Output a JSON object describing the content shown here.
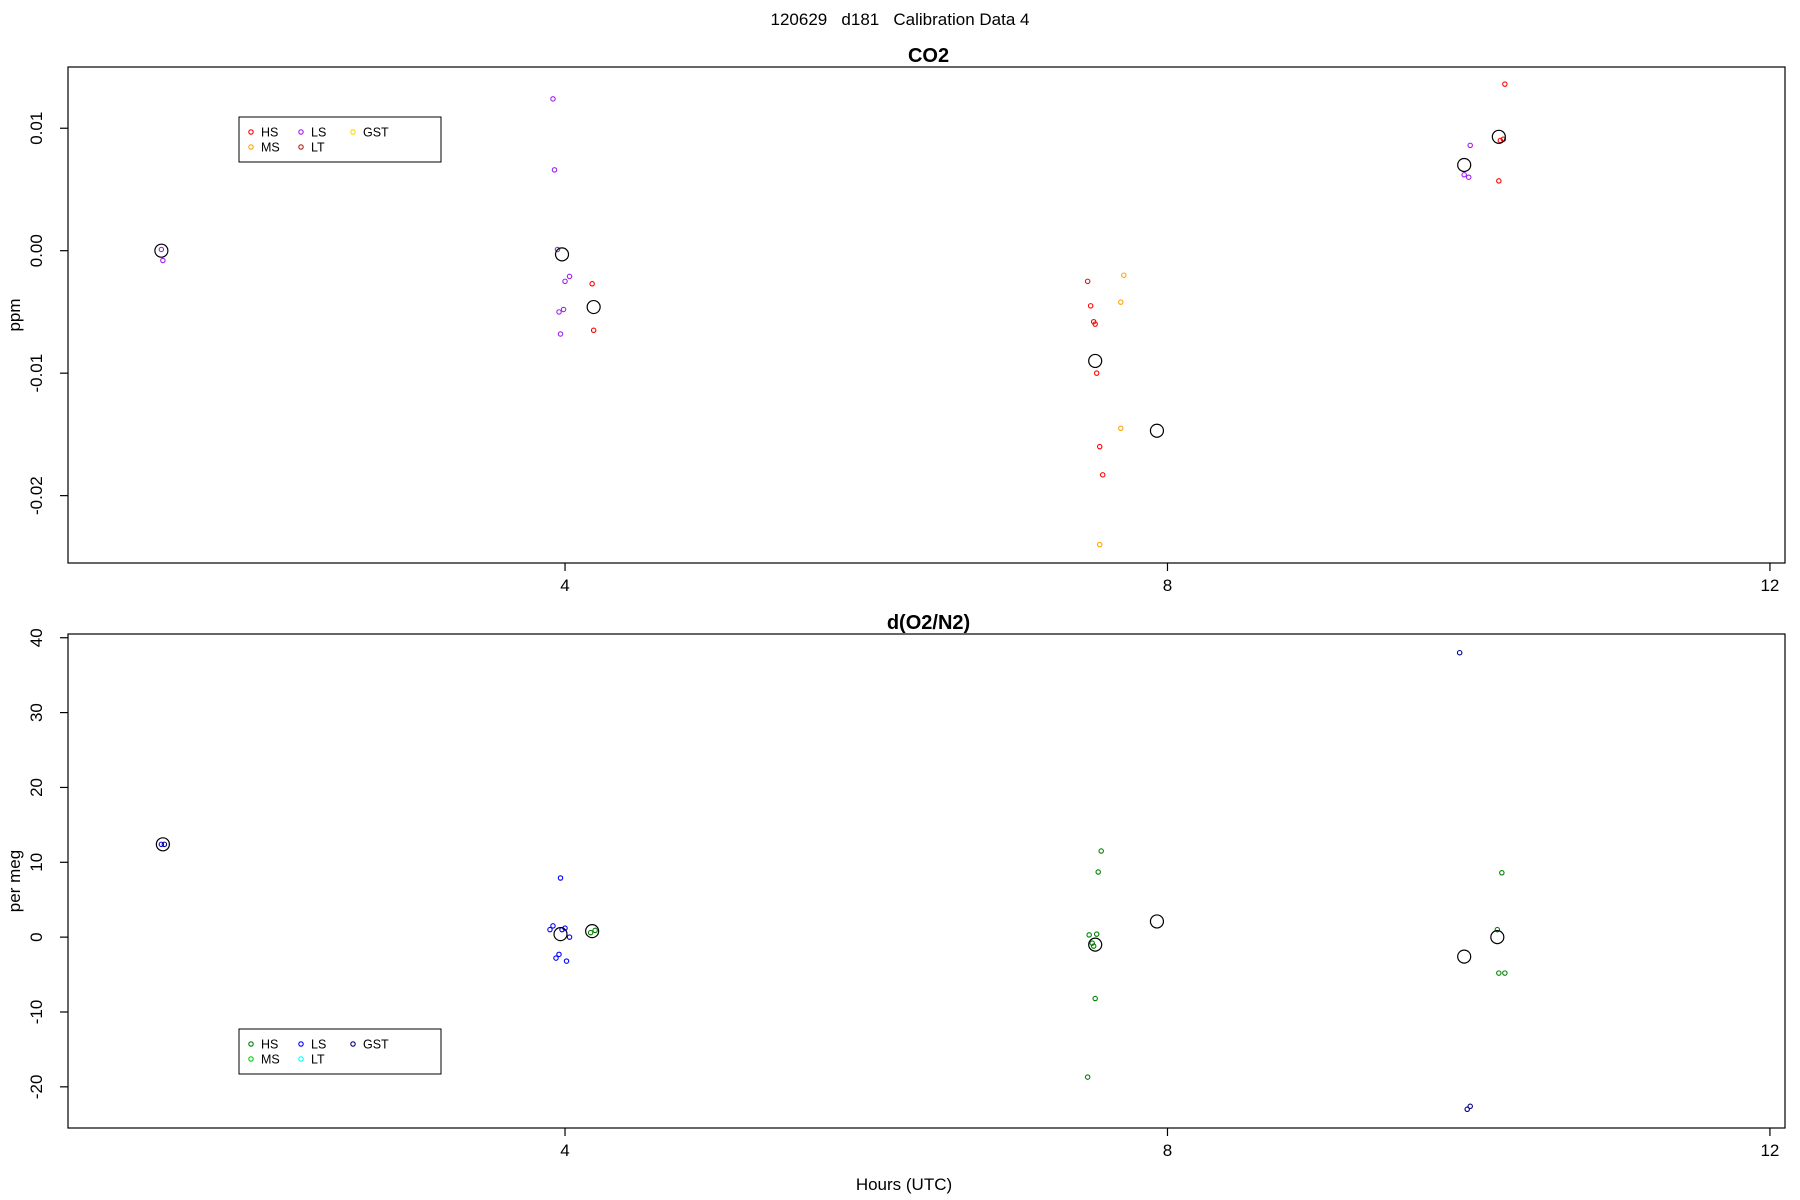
{
  "page_title": "120629   d181   Calibration Data 4",
  "xlabel": "Hours (UTC)",
  "chart_data": [
    {
      "type": "scatter",
      "title": "CO2",
      "ylabel": "ppm",
      "xlim": [
        0.7,
        12.1
      ],
      "ylim": [
        -0.0255,
        0.015
      ],
      "x_ticks": [
        4,
        8,
        12
      ],
      "x_tick_labels": [
        "4",
        "8",
        "12"
      ],
      "y_ticks": [
        -0.02,
        -0.01,
        0.0,
        0.01
      ],
      "y_tick_labels": [
        "-0.02",
        "-0.01",
        "0.00",
        "0.01"
      ],
      "legend": {
        "placement": "top-left",
        "entries": [
          {
            "label": "HS",
            "color": "#ff0000"
          },
          {
            "label": "MS",
            "color": "#ffa500"
          },
          {
            "label": "LS",
            "color": "#a020f0"
          },
          {
            "label": "LT",
            "color": "#b22222"
          },
          {
            "label": "GST",
            "color": "#ffd700"
          }
        ]
      },
      "series": [
        {
          "name": "HS",
          "color": "#ff0000",
          "points": [
            [
              4.18,
              -0.0027
            ],
            [
              4.19,
              -0.0065
            ],
            [
              7.47,
              -0.0025
            ],
            [
              7.49,
              -0.0045
            ],
            [
              7.51,
              -0.0058
            ],
            [
              7.52,
              -0.006
            ],
            [
              7.53,
              -0.01
            ],
            [
              7.55,
              -0.016
            ],
            [
              7.57,
              -0.0183
            ],
            [
              10.2,
              0.0057
            ],
            [
              10.21,
              0.009
            ],
            [
              10.23,
              0.0091
            ],
            [
              10.24,
              0.0136
            ]
          ]
        },
        {
          "name": "MS",
          "color": "#ffa500",
          "points": [
            [
              7.71,
              -0.002
            ],
            [
              7.69,
              -0.0042
            ],
            [
              7.69,
              -0.0145
            ],
            [
              7.55,
              -0.024
            ]
          ]
        },
        {
          "name": "LS",
          "color": "#a020f0",
          "points": [
            [
              1.32,
              0.0001
            ],
            [
              1.33,
              -0.0008
            ],
            [
              3.92,
              0.0124
            ],
            [
              3.93,
              0.0066
            ],
            [
              3.95,
              0.0001
            ],
            [
              3.96,
              -0.005
            ],
            [
              3.97,
              -0.0068
            ],
            [
              3.99,
              -0.0048
            ],
            [
              4.0,
              -0.0025
            ],
            [
              4.03,
              -0.0021
            ],
            [
              9.97,
              0.0062
            ],
            [
              10.0,
              0.006
            ],
            [
              10.01,
              0.0086
            ]
          ]
        },
        {
          "name": "LT",
          "color": "#b22222",
          "points": []
        },
        {
          "name": "GST",
          "color": "#ffd700",
          "points": []
        },
        {
          "name": "",
          "color": "#000000",
          "role": "mean",
          "points": [
            [
              1.32,
              0.0
            ],
            [
              3.98,
              -0.0003
            ],
            [
              4.19,
              -0.0046
            ],
            [
              7.52,
              -0.009
            ],
            [
              7.93,
              -0.0147
            ],
            [
              9.97,
              0.007
            ],
            [
              10.2,
              0.0093
            ]
          ]
        }
      ]
    },
    {
      "type": "scatter",
      "title": "d(O2/N2)",
      "ylabel": "per meg",
      "xlim": [
        0.7,
        12.1
      ],
      "ylim": [
        -25.5,
        40.5
      ],
      "x_ticks": [
        4,
        8,
        12
      ],
      "x_tick_labels": [
        "4",
        "8",
        "12"
      ],
      "y_ticks": [
        -20,
        -10,
        0,
        10,
        20,
        30,
        40
      ],
      "y_tick_labels": [
        "-20",
        "-10",
        "0",
        "10",
        "20",
        "30",
        "40"
      ],
      "legend": {
        "placement": "bottom-left",
        "entries": [
          {
            "label": "HS",
            "color": "#008000"
          },
          {
            "label": "MS",
            "color": "#00d000"
          },
          {
            "label": "LS",
            "color": "#0000ff"
          },
          {
            "label": "LT",
            "color": "#00ffff"
          },
          {
            "label": "GST",
            "color": "#00008b"
          }
        ]
      },
      "series": [
        {
          "name": "HS",
          "color": "#008000",
          "points": [
            [
              4.17,
              0.6
            ],
            [
              4.2,
              0.9
            ],
            [
              7.47,
              -18.7
            ],
            [
              7.48,
              0.3
            ],
            [
              7.5,
              -0.8
            ],
            [
              7.51,
              -1.2
            ],
            [
              7.52,
              -8.2
            ],
            [
              7.53,
              0.4
            ],
            [
              7.54,
              8.7
            ],
            [
              7.56,
              11.5
            ],
            [
              10.19,
              1.0
            ],
            [
              10.2,
              -4.8
            ],
            [
              10.22,
              8.6
            ],
            [
              10.24,
              -4.8
            ]
          ]
        },
        {
          "name": "MS",
          "color": "#00d000",
          "points": []
        },
        {
          "name": "LS",
          "color": "#0000ff",
          "points": [
            [
              1.32,
              12.4
            ],
            [
              3.9,
              1.0
            ],
            [
              3.92,
              1.5
            ],
            [
              3.94,
              -2.8
            ],
            [
              3.96,
              -2.3
            ],
            [
              3.97,
              7.9
            ],
            [
              3.98,
              1.0
            ],
            [
              4.0,
              1.2
            ],
            [
              4.01,
              -3.2
            ],
            [
              4.03,
              0.0
            ]
          ]
        },
        {
          "name": "LT",
          "color": "#00ffff",
          "points": []
        },
        {
          "name": "GST",
          "color": "#00008b",
          "points": [
            [
              1.34,
              12.4
            ],
            [
              9.94,
              38.0
            ],
            [
              9.99,
              -23.0
            ],
            [
              10.01,
              -22.6
            ]
          ]
        },
        {
          "name": "",
          "color": "#000000",
          "role": "mean",
          "points": [
            [
              1.33,
              12.4
            ],
            [
              3.97,
              0.4
            ],
            [
              4.18,
              0.8
            ],
            [
              7.52,
              -1.0
            ],
            [
              7.93,
              2.1
            ],
            [
              9.97,
              -2.6
            ],
            [
              10.19,
              0.0
            ]
          ]
        }
      ]
    }
  ]
}
